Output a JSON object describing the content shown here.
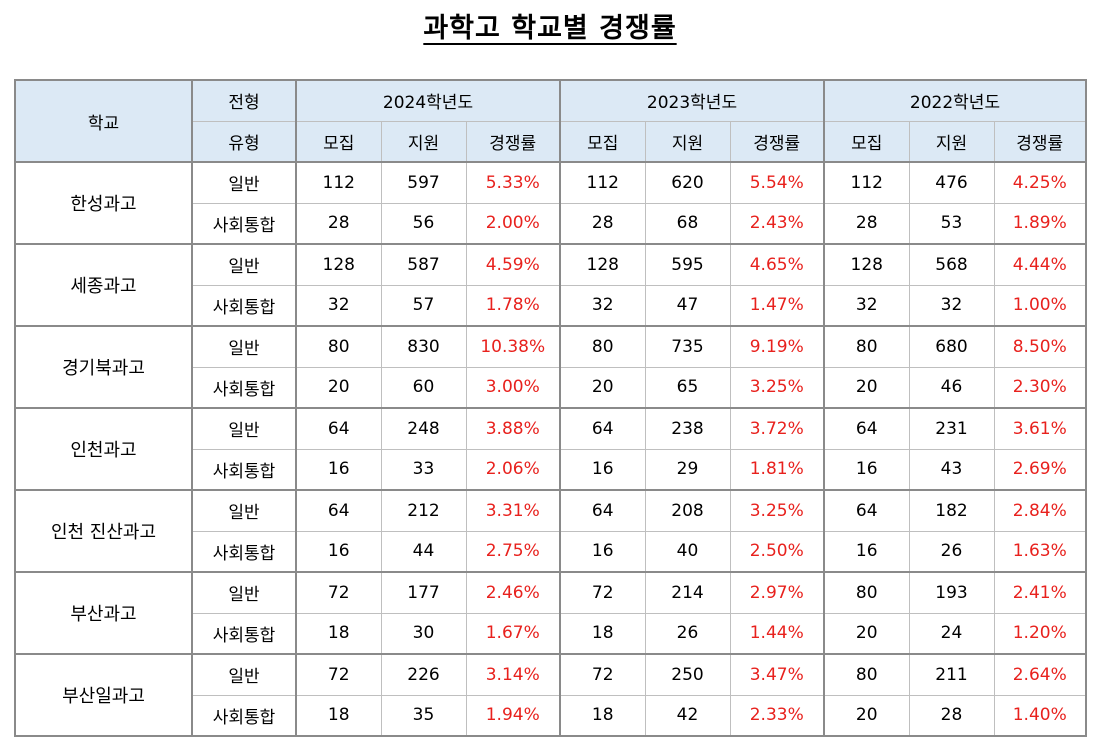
{
  "title": "과학고 학교별 경쟁률",
  "header": {
    "school": "학교",
    "type_top": "전형",
    "type_bottom": "유형",
    "years": [
      "2024학년도",
      "2023학년도",
      "2022학년도"
    ],
    "sub": [
      "모집",
      "지원",
      "경쟁률"
    ]
  },
  "schools": [
    {
      "name": "한성과고",
      "rows": [
        {
          "type": "일반",
          "y2024": [
            "112",
            "597",
            "5.33%"
          ],
          "y2023": [
            "112",
            "620",
            "5.54%"
          ],
          "y2022": [
            "112",
            "476",
            "4.25%"
          ]
        },
        {
          "type": "사회통합",
          "y2024": [
            "28",
            "56",
            "2.00%"
          ],
          "y2023": [
            "28",
            "68",
            "2.43%"
          ],
          "y2022": [
            "28",
            "53",
            "1.89%"
          ]
        }
      ]
    },
    {
      "name": "세종과고",
      "rows": [
        {
          "type": "일반",
          "y2024": [
            "128",
            "587",
            "4.59%"
          ],
          "y2023": [
            "128",
            "595",
            "4.65%"
          ],
          "y2022": [
            "128",
            "568",
            "4.44%"
          ]
        },
        {
          "type": "사회통합",
          "y2024": [
            "32",
            "57",
            "1.78%"
          ],
          "y2023": [
            "32",
            "47",
            "1.47%"
          ],
          "y2022": [
            "32",
            "32",
            "1.00%"
          ]
        }
      ]
    },
    {
      "name": "경기북과고",
      "rows": [
        {
          "type": "일반",
          "y2024": [
            "80",
            "830",
            "10.38%"
          ],
          "y2023": [
            "80",
            "735",
            "9.19%"
          ],
          "y2022": [
            "80",
            "680",
            "8.50%"
          ]
        },
        {
          "type": "사회통합",
          "y2024": [
            "20",
            "60",
            "3.00%"
          ],
          "y2023": [
            "20",
            "65",
            "3.25%"
          ],
          "y2022": [
            "20",
            "46",
            "2.30%"
          ]
        }
      ]
    },
    {
      "name": "인천과고",
      "rows": [
        {
          "type": "일반",
          "y2024": [
            "64",
            "248",
            "3.88%"
          ],
          "y2023": [
            "64",
            "238",
            "3.72%"
          ],
          "y2022": [
            "64",
            "231",
            "3.61%"
          ]
        },
        {
          "type": "사회통합",
          "y2024": [
            "16",
            "33",
            "2.06%"
          ],
          "y2023": [
            "16",
            "29",
            "1.81%"
          ],
          "y2022": [
            "16",
            "43",
            "2.69%"
          ]
        }
      ]
    },
    {
      "name": "인천 진산과고",
      "rows": [
        {
          "type": "일반",
          "y2024": [
            "64",
            "212",
            "3.31%"
          ],
          "y2023": [
            "64",
            "208",
            "3.25%"
          ],
          "y2022": [
            "64",
            "182",
            "2.84%"
          ]
        },
        {
          "type": "사회통합",
          "y2024": [
            "16",
            "44",
            "2.75%"
          ],
          "y2023": [
            "16",
            "40",
            "2.50%"
          ],
          "y2022": [
            "16",
            "26",
            "1.63%"
          ]
        }
      ]
    },
    {
      "name": "부산과고",
      "rows": [
        {
          "type": "일반",
          "y2024": [
            "72",
            "177",
            "2.46%"
          ],
          "y2023": [
            "72",
            "214",
            "2.97%"
          ],
          "y2022": [
            "80",
            "193",
            "2.41%"
          ]
        },
        {
          "type": "사회통합",
          "y2024": [
            "18",
            "30",
            "1.67%"
          ],
          "y2023": [
            "18",
            "26",
            "1.44%"
          ],
          "y2022": [
            "20",
            "24",
            "1.20%"
          ]
        }
      ]
    },
    {
      "name": "부산일과고",
      "rows": [
        {
          "type": "일반",
          "y2024": [
            "72",
            "226",
            "3.14%"
          ],
          "y2023": [
            "72",
            "250",
            "3.47%"
          ],
          "y2022": [
            "80",
            "211",
            "2.64%"
          ]
        },
        {
          "type": "사회통합",
          "y2024": [
            "18",
            "35",
            "1.94%"
          ],
          "y2023": [
            "18",
            "42",
            "2.33%"
          ],
          "y2022": [
            "20",
            "28",
            "1.40%"
          ]
        }
      ]
    }
  ],
  "colors": {
    "rate": "#e8211d",
    "header_bg": "#dce9f5"
  }
}
